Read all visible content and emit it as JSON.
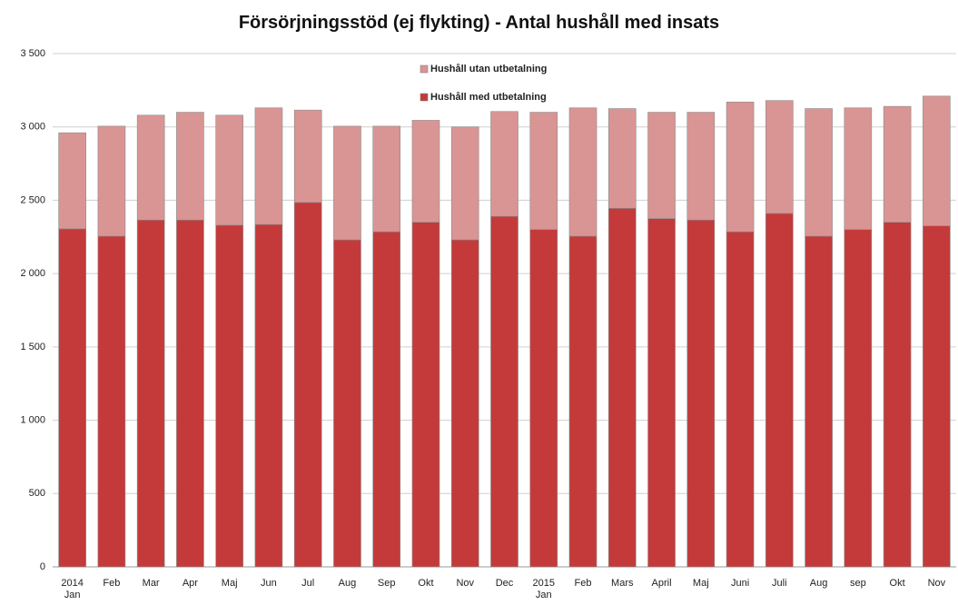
{
  "chart_data": {
    "type": "stacked_bar",
    "title": "Försörjningsstöd (ej flykting) - Antal hushåll med insats",
    "categories": [
      "2014 Jan",
      "Feb",
      "Mar",
      "Apr",
      "Maj",
      "Jun",
      "Jul",
      "Aug",
      "Sep",
      "Okt",
      "Nov",
      "Dec",
      "2015 Jan",
      "Feb",
      "Mars",
      "April",
      "Maj",
      "Juni",
      "Juli",
      "Aug",
      "sep",
      "Okt",
      "Nov"
    ],
    "series": [
      {
        "name": "Hushåll med utbetalning",
        "color": "#c43a3a",
        "values": [
          2305,
          2255,
          2365,
          2365,
          2330,
          2335,
          2485,
          2230,
          2285,
          2350,
          2230,
          2390,
          2300,
          2255,
          2445,
          2375,
          2365,
          2285,
          2410,
          2255,
          2300,
          2350,
          2325
        ]
      },
      {
        "name": "Hushåll utan utbetalning",
        "color": "#d99594",
        "values": [
          655,
          750,
          715,
          735,
          750,
          795,
          630,
          775,
          720,
          695,
          770,
          715,
          800,
          875,
          680,
          725,
          735,
          885,
          770,
          870,
          830,
          790,
          885
        ]
      }
    ],
    "ylim": [
      0,
      3500
    ],
    "yticks": [
      0,
      500,
      {
        "value": 1000,
        "label": "1 000"
      },
      {
        "value": 1500,
        "label": "1 500"
      },
      {
        "value": 2000,
        "label": "2 000"
      },
      {
        "value": 2500,
        "label": "2 500"
      },
      {
        "value": 3000,
        "label": "3 000"
      },
      {
        "value": 3500,
        "label": "3 500"
      }
    ],
    "grid": true,
    "legend": "top"
  }
}
